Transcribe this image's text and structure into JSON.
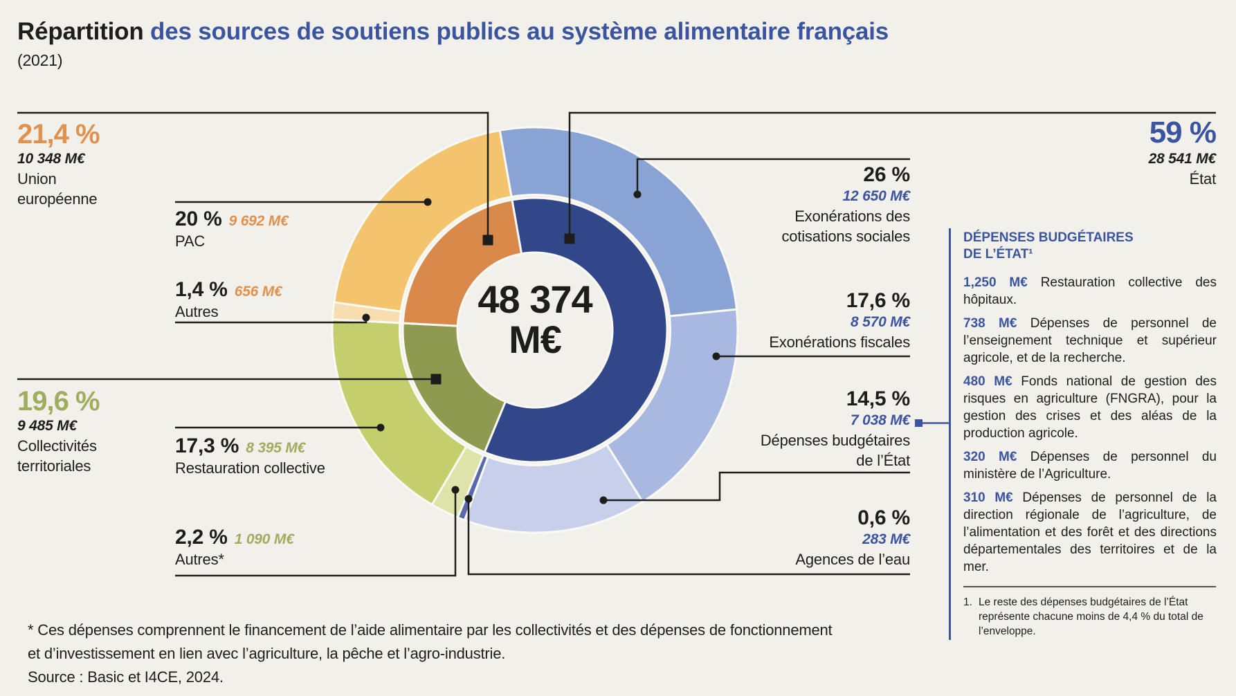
{
  "header": {
    "title_black": "Répartition",
    "title_blue": " des sources de soutiens publics au système alimentaire français",
    "subtitle": "(2021)"
  },
  "center": {
    "value": "48 374",
    "unit": "M€"
  },
  "colors": {
    "background": "#f2f0ea",
    "ink": "#1d1d1b",
    "blue": "#3a54a0",
    "orange_label": "#e0914e",
    "green_label": "#a0ad5f",
    "stroke": "#faf9f4"
  },
  "chart_data": {
    "type": "sunburst-donut",
    "title": "Répartition des sources de soutiens publics au système alimentaire français (2021)",
    "total_value": 48374,
    "total_label": "48 374 M€",
    "start_angle_deg": -10,
    "unit": "M€",
    "groups": [
      {
        "id": "etat",
        "label": "État",
        "pct": "59 %",
        "amount": "28 541 M€",
        "value": 28541,
        "color": "#32478a",
        "children": [
          {
            "id": "exo-cotisations",
            "label": "Exonérations des cotisations sociales",
            "pct": "26 %",
            "amount": "12 650 M€",
            "value": 12650,
            "color": "#8aa3d5"
          },
          {
            "id": "exo-fiscales",
            "label": "Exonérations fiscales",
            "pct": "17,6 %",
            "amount": "8 570 M€",
            "value": 8570,
            "color": "#a9b8e0"
          },
          {
            "id": "depenses-budgetaires",
            "label": "Dépenses budgétaires de l’État",
            "pct": "14,5 %",
            "amount": "7 038 M€",
            "value": 7038,
            "color": "#c8cfeb"
          },
          {
            "id": "agences-eau",
            "label": "Agences de l’eau",
            "pct": "0,6 %",
            "amount": "283 M€",
            "value": 283,
            "color": "#5a68ae"
          }
        ]
      },
      {
        "id": "collectivites",
        "label": "Collectivités territoriales",
        "pct": "19,6 %",
        "amount": "9 485 M€",
        "value": 9485,
        "color": "#8e9a4f",
        "children": [
          {
            "id": "autres-collectivites",
            "label": "Autres*",
            "pct": "2,2 %",
            "amount": "1 090 M€",
            "value": 1090,
            "color": "#dde3a9"
          },
          {
            "id": "restauration-collective",
            "label": "Restauration collective",
            "pct": "17,3 %",
            "amount": "8 395 M€",
            "value": 8395,
            "color": "#c5ce6d"
          }
        ]
      },
      {
        "id": "union-europeenne",
        "label": "Union européenne",
        "pct": "21,4 %",
        "amount": "10 348 M€",
        "value": 10348,
        "color": "#d9894a",
        "children": [
          {
            "id": "autres-ue",
            "label": "Autres",
            "pct": "1,4 %",
            "amount": "656 M€",
            "value": 656,
            "color": "#f8ddb1"
          },
          {
            "id": "pac",
            "label": "PAC",
            "pct": "20 %",
            "amount": "9 692 M€",
            "value": 9692,
            "color": "#f3c46d"
          }
        ]
      }
    ]
  },
  "callouts": {
    "ue_total": {
      "pct": "21,4 %",
      "amount": "10 348 M€",
      "name_line1": "Union",
      "name_line2": "européenne"
    },
    "pac": {
      "pct": "20 %",
      "amount": "9 692 M€",
      "name": "PAC"
    },
    "ue_autres": {
      "pct": "1,4 %",
      "amount": "656 M€",
      "name": "Autres"
    },
    "coll_total": {
      "pct": "19,6 %",
      "amount": "9 485 M€",
      "name_line1": "Collectivités",
      "name_line2": "territoriales"
    },
    "restauration": {
      "pct": "17,3 %",
      "amount": "8 395 M€",
      "name": "Restauration collective"
    },
    "coll_autres": {
      "pct": "2,2 %",
      "amount": "1 090 M€",
      "name": "Autres*"
    },
    "etat_total": {
      "pct": "59 %",
      "amount": "28 541 M€",
      "name": "État"
    },
    "exo_cotisations": {
      "pct": "26 %",
      "amount": "12 650 M€",
      "name_line1": "Exonérations des",
      "name_line2": "cotisations sociales"
    },
    "exo_fiscales": {
      "pct": "17,6 %",
      "amount": "8 570 M€",
      "name": "Exonérations fiscales"
    },
    "dep_budg": {
      "pct": "14,5 %",
      "amount": "7 038 M€",
      "name_line1": "Dépenses budgétaires",
      "name_line2": "de l’État"
    },
    "agences": {
      "pct": "0,6 %",
      "amount": "283 M€",
      "name": "Agences de l’eau"
    }
  },
  "panel": {
    "title_line1": "DÉPENSES BUDGÉTAIRES",
    "title_line2": "DE L’ÉTAT¹",
    "items": [
      {
        "amount": "1,250 M€",
        "text": "Restauration collective des hôpitaux."
      },
      {
        "amount": "738 M€",
        "text": "Dépenses de personnel de l’enseignement technique et supérieur agricole, et de la recherche."
      },
      {
        "amount": "480 M€",
        "text": "Fonds national de gestion des risques en agriculture (FNGRA), pour la gestion des crises et des aléas de la production agricole."
      },
      {
        "amount": "320 M€",
        "text": "Dépenses de personnel du ministère de l’Agriculture."
      },
      {
        "amount": "310 M€",
        "text": "Dépenses de personnel de la direction régionale de l’agriculture, de l’alimentation et des forêt et des directions départementales des territoires et de la mer."
      }
    ],
    "footnote_num": "1.",
    "footnote_text": "Le reste des dépenses budgétaires de l’État représente chacune moins de 4,4 % du total de l’enveloppe."
  },
  "footer": {
    "line1": "* Ces dépenses comprennent le financement de l’aide alimentaire par les collectivités et des dépenses de fonctionnement",
    "line2": "et d’investissement en lien avec l’agriculture, la pêche et l’agro-industrie.",
    "line3": "Source : Basic et I4CE, 2024."
  }
}
